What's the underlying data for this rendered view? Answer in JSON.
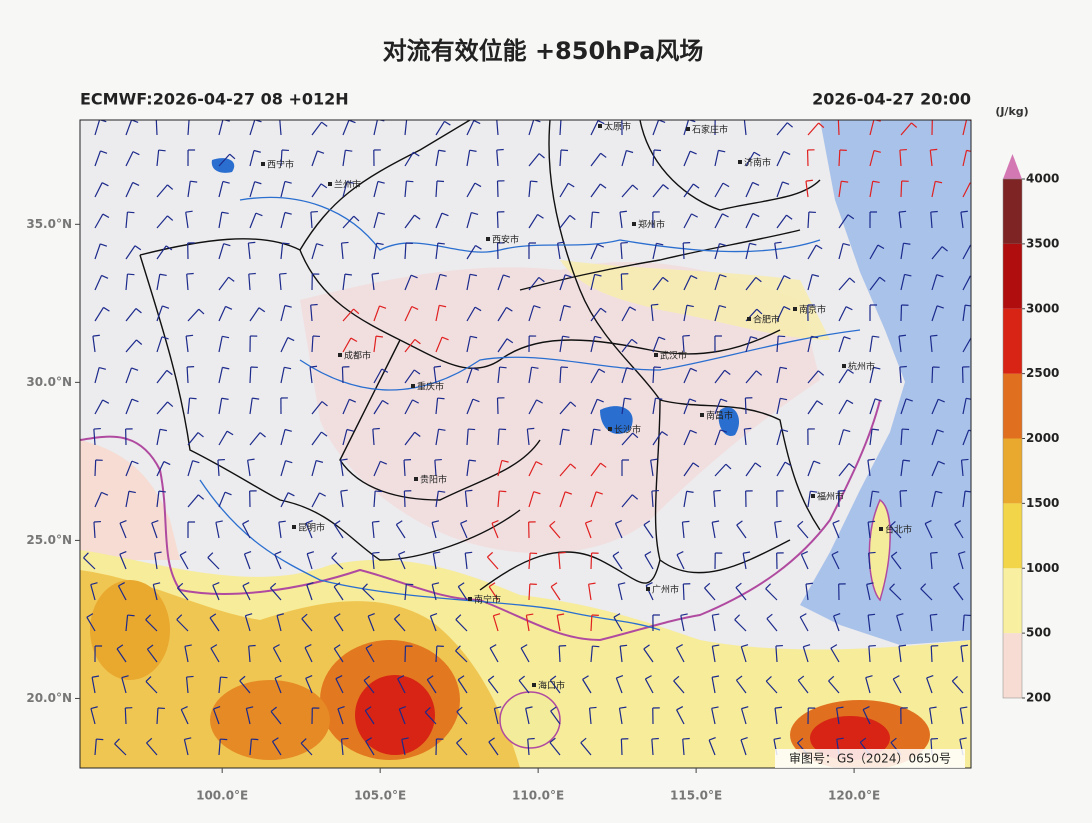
{
  "chart_data": {
    "type": "map",
    "title": "对流有效位能 +850hPa风场",
    "subtitle": "ECMWF:2026-04-27 08 +012H",
    "valid_time": "2026-04-27 20:00",
    "xlim": [
      95.5,
      123.7
    ],
    "ylim": [
      17.8,
      38.3
    ],
    "xticks": [
      {
        "value": 100,
        "label": "100.0°E"
      },
      {
        "value": 105,
        "label": "105.0°E"
      },
      {
        "value": 110,
        "label": "110.0°E"
      },
      {
        "value": 115,
        "label": "115.0°E"
      },
      {
        "value": 120,
        "label": "120.0°E"
      }
    ],
    "yticks": [
      {
        "value": 20,
        "label": "20.0°N"
      },
      {
        "value": 25,
        "label": "25.0°N"
      },
      {
        "value": 30,
        "label": "30.0°N"
      },
      {
        "value": 35,
        "label": "35.0°N"
      }
    ],
    "colorbar": {
      "unit": "(J/kg)",
      "levels": [
        200,
        500,
        1000,
        1500,
        2000,
        2500,
        3000,
        3500,
        4000
      ],
      "colors": [
        "#f6dcd2",
        "#f8f0a0",
        "#f3d54a",
        "#e9a82e",
        "#e07020",
        "#d82414",
        "#b00e0e",
        "#7e2424"
      ],
      "extend_color": "#d478b4"
    },
    "map_labels": [
      "西宁市",
      "兰州市",
      "西安市",
      "太原市",
      "石家庄市",
      "济南市",
      "郑州市",
      "合肥市",
      "南京市",
      "杭州市",
      "武汉市",
      "长沙市",
      "南昌市",
      "重庆市",
      "成都市",
      "贵阳市",
      "昆明市",
      "南宁市",
      "福州市",
      "台北市",
      "广州市",
      "海口市"
    ],
    "credit": "审图号：GS（2024）0650号"
  }
}
